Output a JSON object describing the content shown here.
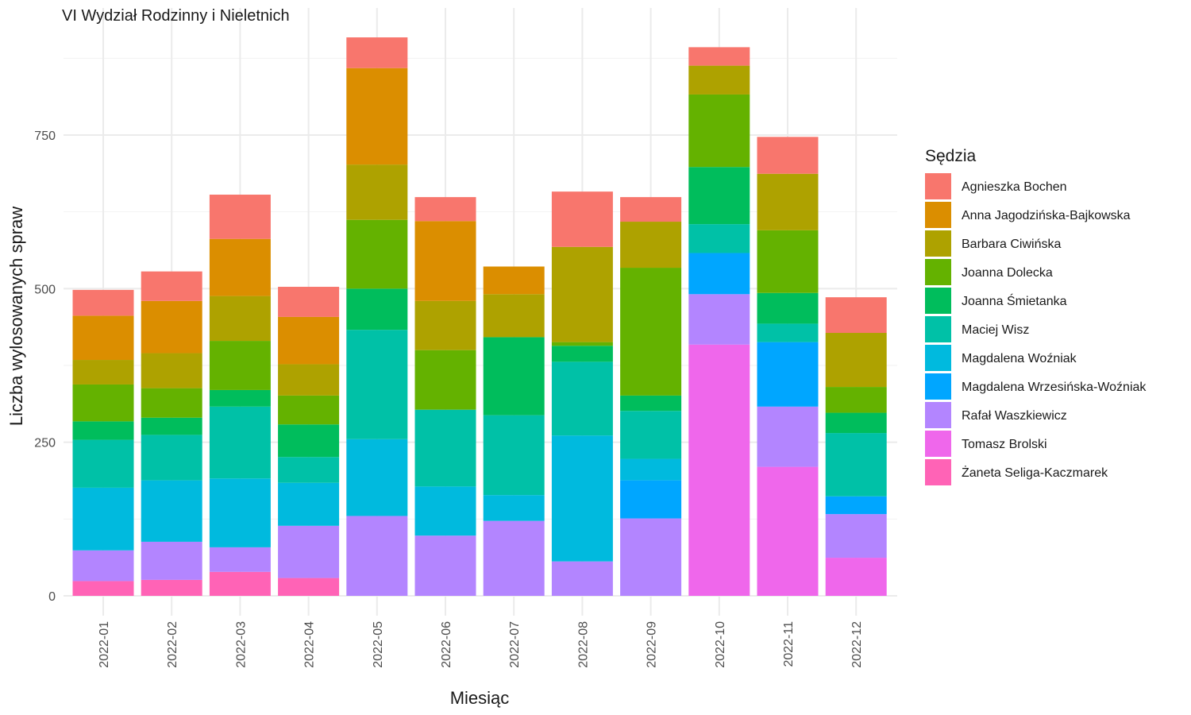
{
  "chart_data": {
    "type": "bar",
    "stacked": true,
    "title": "VI Wydział Rodzinny i Nieletnich",
    "xlabel": "Miesiąc",
    "ylabel": "Liczba wylosowanych spraw",
    "ylim": [
      0,
      930
    ],
    "yticks": [
      0,
      250,
      500,
      750
    ],
    "grid": true,
    "legend_title": "Sędzia",
    "legend_position": "right",
    "categories": [
      "2022-01",
      "2022-02",
      "2022-03",
      "2022-04",
      "2022-05",
      "2022-06",
      "2022-07",
      "2022-08",
      "2022-09",
      "2022-10",
      "2022-11",
      "2022-12"
    ],
    "series": [
      {
        "name": "Agnieszka Bochen",
        "color": "#F8766D",
        "values": [
          42,
          48,
          72,
          49,
          50,
          39,
          0,
          90,
          40,
          30,
          60,
          58
        ]
      },
      {
        "name": "Anna Jagodzińska-Bajkowska",
        "color": "#DB8E00",
        "values": [
          72,
          85,
          93,
          77,
          157,
          130,
          45,
          0,
          0,
          0,
          0,
          0
        ]
      },
      {
        "name": "Barbara Ciwińska",
        "color": "#AEA200",
        "values": [
          40,
          57,
          73,
          51,
          90,
          80,
          70,
          155,
          75,
          47,
          92,
          88
        ]
      },
      {
        "name": "Joanna Dolecka",
        "color": "#64B200",
        "values": [
          60,
          48,
          80,
          47,
          112,
          97,
          0,
          6,
          208,
          118,
          102,
          42
        ]
      },
      {
        "name": "Joanna Śmietanka",
        "color": "#00BD5C",
        "values": [
          30,
          28,
          27,
          53,
          67,
          0,
          127,
          26,
          25,
          93,
          50,
          33
        ]
      },
      {
        "name": "Maciej Wisz",
        "color": "#00C1A7",
        "values": [
          78,
          74,
          117,
          42,
          178,
          125,
          130,
          120,
          78,
          47,
          30,
          103
        ]
      },
      {
        "name": "Magdalena Woźniak",
        "color": "#00BADE",
        "values": [
          102,
          100,
          112,
          70,
          125,
          80,
          42,
          205,
          35,
          0,
          0,
          0
        ]
      },
      {
        "name": "Magdalena Wrzesińska-Woźniak",
        "color": "#00A6FF",
        "values": [
          0,
          0,
          0,
          0,
          0,
          0,
          0,
          0,
          62,
          67,
          105,
          29
        ]
      },
      {
        "name": "Rafał Waszkiewicz",
        "color": "#B385FF",
        "values": [
          50,
          62,
          40,
          85,
          130,
          98,
          122,
          56,
          126,
          82,
          98,
          71
        ]
      },
      {
        "name": "Tomasz Brolski",
        "color": "#EF67EB",
        "values": [
          0,
          0,
          0,
          0,
          0,
          0,
          0,
          0,
          0,
          409,
          210,
          62
        ]
      },
      {
        "name": "Żaneta Seliga-Kaczmarek",
        "color": "#FF63B6",
        "values": [
          24,
          26,
          39,
          29,
          0,
          0,
          0,
          0,
          0,
          0,
          0,
          0
        ]
      }
    ]
  }
}
